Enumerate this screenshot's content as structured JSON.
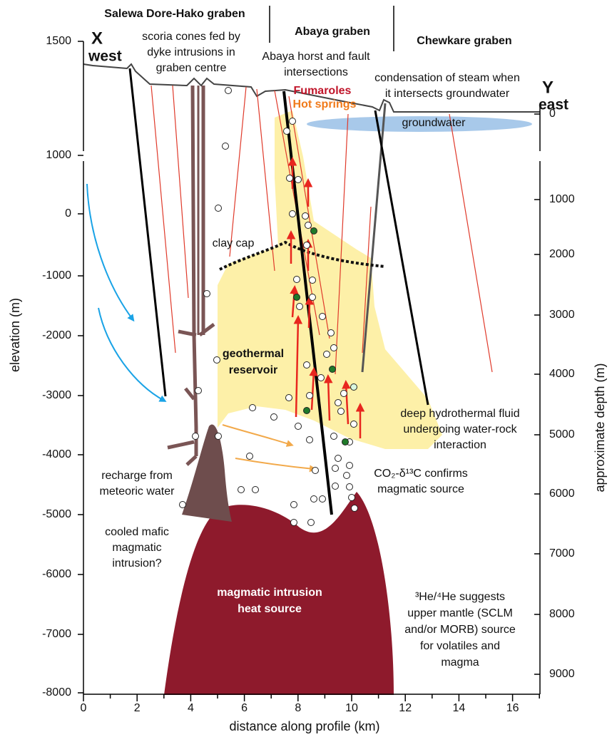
{
  "header": {
    "grabens": [
      "Salewa Dore-Hako graben",
      "Abaya graben",
      "Chewkare graben"
    ]
  },
  "profile": {
    "start": {
      "label": "X",
      "side": "west"
    },
    "end": {
      "label": "Y",
      "side": "east"
    }
  },
  "axes": {
    "left": {
      "title": "elevation (m)",
      "ticks": [
        "1500",
        "1000",
        "0",
        "-1000",
        "-2000",
        "-3000",
        "-4000",
        "-5000",
        "-6000",
        "-7000",
        "-8000"
      ]
    },
    "bottom": {
      "title": "distance along profile (km)",
      "ticks": [
        "0",
        "2",
        "4",
        "6",
        "8",
        "10",
        "12",
        "14",
        "16"
      ]
    },
    "right": {
      "title": "approximate depth (m)",
      "ticks": [
        "0",
        "1000",
        "2000",
        "3000",
        "4000",
        "5000",
        "6000",
        "7000",
        "8000",
        "9000"
      ]
    }
  },
  "annotations": {
    "scoria": [
      "scoria cones fed by",
      "dyke intrusions in",
      "graben centre"
    ],
    "horst": [
      "Abaya horst and fault",
      "intersections"
    ],
    "fumaroles": "Fumaroles",
    "hot_springs": "Hot springs",
    "condensation": [
      "condensation of steam when",
      "it intersects groundwater"
    ],
    "groundwater": "groundwater",
    "clay_cap": "clay cap",
    "reservoir": [
      "geothermal",
      "reservoir"
    ],
    "recharge": [
      "recharge from",
      "meteoric water"
    ],
    "cooled": [
      "cooled mafic",
      "magmatic",
      "intrusion?"
    ],
    "deep_fluid": [
      "deep hydrothermal fluid",
      "undergoing water-rock",
      "interaction"
    ],
    "co2": [
      "CO₂-δ¹³C confirms",
      "magmatic source"
    ],
    "heat_source": [
      "magmatic intrusion",
      "heat source"
    ],
    "helium": [
      "³He/⁴He suggests",
      "upper mantle (SCLM",
      "and/or MORB) source",
      "for volatiles and",
      "magma"
    ]
  }
}
